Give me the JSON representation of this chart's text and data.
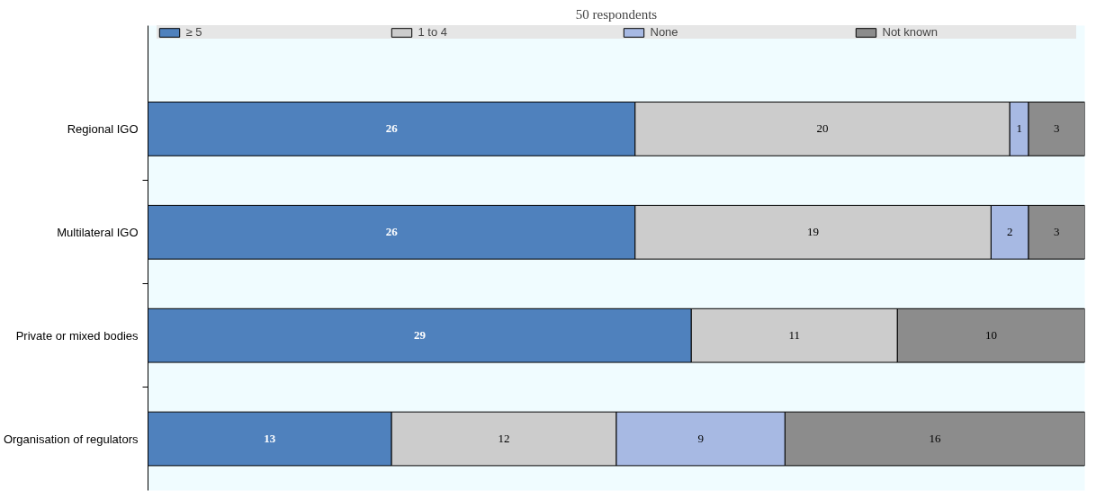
{
  "chart_data": {
    "type": "bar",
    "orientation": "horizontal",
    "stacked": true,
    "title": "50 respondents",
    "categories": [
      "Regional IGO",
      "Multilateral IGO",
      "Private or mixed bodies",
      "Organisation of regulators"
    ],
    "series": [
      {
        "name": "≥ 5",
        "color": "#4f81bd",
        "values": [
          26,
          26,
          29,
          13
        ]
      },
      {
        "name": "1 to 4",
        "color": "#cccccc",
        "values": [
          20,
          19,
          11,
          12
        ]
      },
      {
        "name": "None",
        "color": "#a7b9e3",
        "values": [
          1,
          2,
          null,
          9
        ]
      },
      {
        "name": "Not known",
        "color": "#8c8c8c",
        "values": [
          3,
          3,
          10,
          16
        ]
      }
    ],
    "xlim": [
      0,
      50
    ],
    "data_labels": true,
    "legend": "top",
    "tick_labels": "y"
  }
}
